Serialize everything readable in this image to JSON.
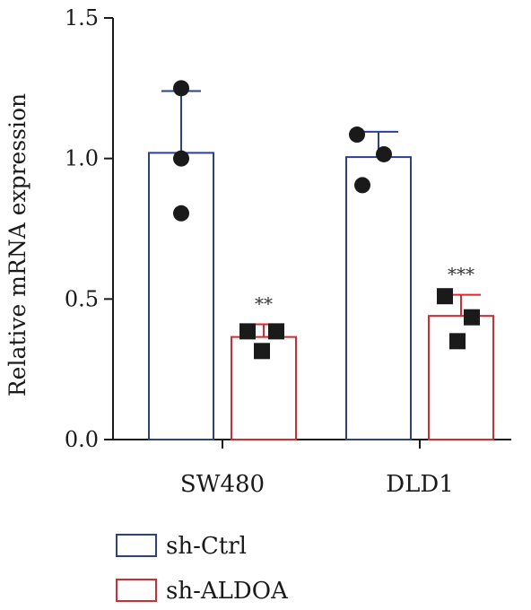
{
  "chart_data": {
    "type": "bar",
    "title": "",
    "xlabel": "",
    "ylabel": "Relative mRNA expression",
    "ylim": [
      0,
      1.5
    ],
    "yticks": [
      "0.0",
      "0.5",
      "1.0",
      "1.5"
    ],
    "categories": [
      "SW480",
      "DLD1"
    ],
    "grid": false,
    "legend_position": "bottom-left",
    "series": [
      {
        "name": "sh-Ctrl",
        "color": "#2b3f93",
        "marker": "circle",
        "values": [
          1.02,
          1.005
        ],
        "errors": [
          0.22,
          0.09
        ],
        "points": [
          [
            1.25,
            1.0,
            0.805
          ],
          [
            1.085,
            1.015,
            0.905
          ]
        ]
      },
      {
        "name": "sh-ALDOA",
        "color": "#e0262b",
        "marker": "square",
        "values": [
          0.365,
          0.44
        ],
        "errors": [
          0.045,
          0.075
        ],
        "points": [
          [
            0.385,
            0.385,
            0.315
          ],
          [
            0.51,
            0.435,
            0.35
          ]
        ]
      }
    ],
    "significance": [
      "**",
      "***"
    ]
  }
}
